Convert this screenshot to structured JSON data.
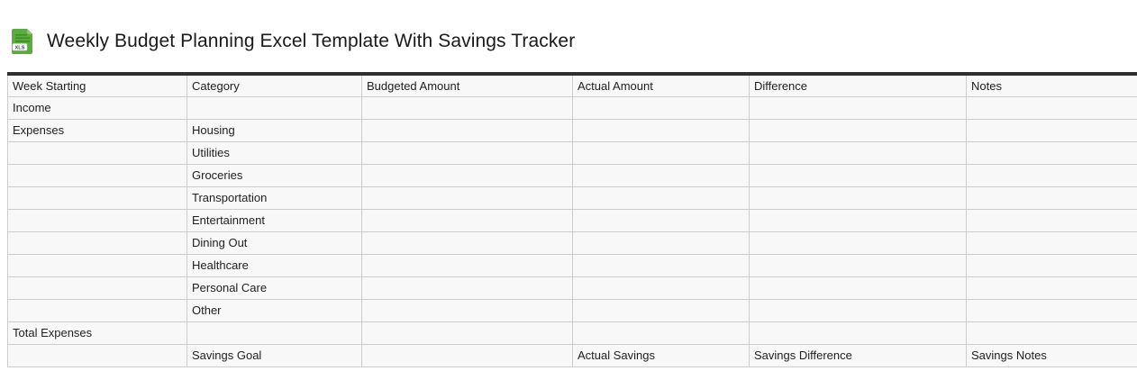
{
  "page": {
    "title": "Weekly Budget Planning Excel Template With Savings Tracker",
    "icon": {
      "name": "xls-file-icon",
      "label": "XLS"
    }
  },
  "table": {
    "columns": [
      "Week Starting",
      "Category",
      "Budgeted Amount",
      "Actual Amount",
      "Difference",
      "Notes"
    ],
    "rows": [
      [
        "Income",
        "",
        "",
        "",
        "",
        ""
      ],
      [
        "Expenses",
        "Housing",
        "",
        "",
        "",
        ""
      ],
      [
        "",
        "Utilities",
        "",
        "",
        "",
        ""
      ],
      [
        "",
        "Groceries",
        "",
        "",
        "",
        ""
      ],
      [
        "",
        "Transportation",
        "",
        "",
        "",
        ""
      ],
      [
        "",
        "Entertainment",
        "",
        "",
        "",
        ""
      ],
      [
        "",
        "Dining Out",
        "",
        "",
        "",
        ""
      ],
      [
        "",
        "Healthcare",
        "",
        "",
        "",
        ""
      ],
      [
        "",
        "Personal Care",
        "",
        "",
        "",
        ""
      ],
      [
        "",
        "Other",
        "",
        "",
        "",
        ""
      ],
      [
        "Total Expenses",
        "",
        "",
        "",
        "",
        ""
      ],
      [
        "",
        "Savings Goal",
        "",
        "Actual Savings",
        "Savings Difference",
        "Savings Notes"
      ]
    ]
  },
  "colors": {
    "top_border": "#2e2e2e",
    "cell_border": "#cccccc",
    "cell_bg": "#f8f8f8",
    "text": "#202124",
    "icon_green": "#5aad3c"
  }
}
